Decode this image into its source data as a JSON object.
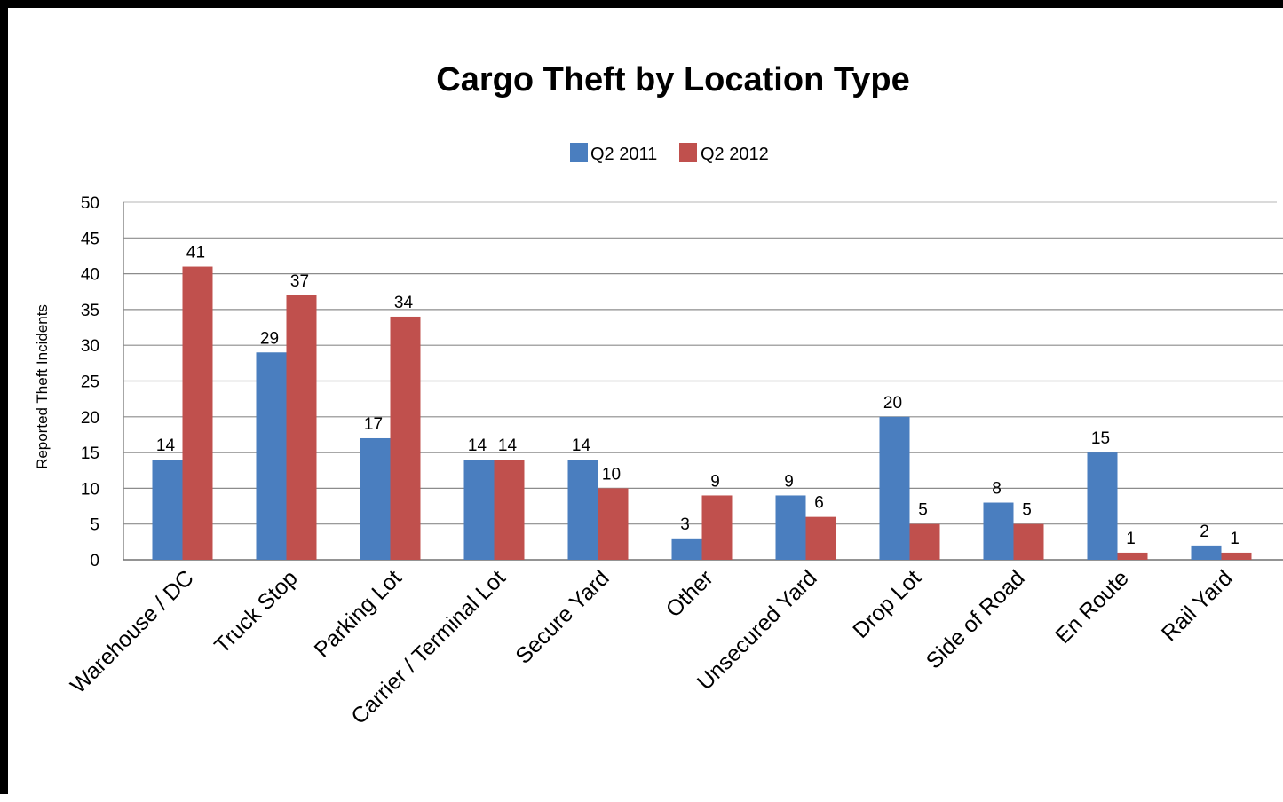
{
  "chart_data": {
    "type": "bar",
    "title": "Cargo Theft by Location Type",
    "ylabel": "Reported Theft Incidents",
    "xlabel": "",
    "ylim": [
      0,
      50
    ],
    "yticks": [
      0,
      5,
      10,
      15,
      20,
      25,
      30,
      35,
      40,
      45,
      50
    ],
    "grid": true,
    "legend_position": "top-center",
    "categories": [
      "Warehouse / DC",
      "Truck Stop",
      "Parking Lot",
      "Carrier / Terminal Lot",
      "Secure Yard",
      "Other",
      "Unsecured Yard",
      "Drop Lot",
      "Side of Road",
      "En Route",
      "Rail Yard"
    ],
    "series": [
      {
        "name": "Q2 2011",
        "color": "#4a7ebf",
        "values": [
          14,
          29,
          17,
          14,
          14,
          3,
          9,
          20,
          8,
          15,
          2
        ]
      },
      {
        "name": "Q2 2012",
        "color": "#c0504d",
        "values": [
          41,
          37,
          34,
          14,
          10,
          9,
          6,
          5,
          5,
          1,
          1
        ]
      }
    ]
  }
}
